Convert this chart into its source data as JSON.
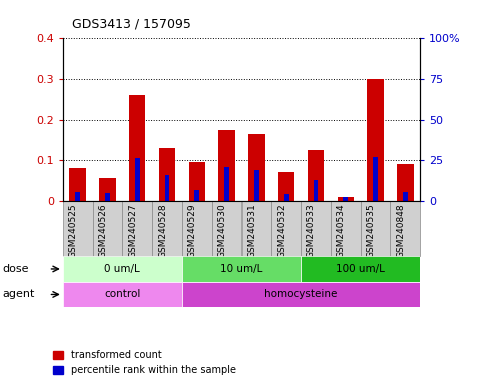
{
  "title": "GDS3413 / 157095",
  "samples": [
    "GSM240525",
    "GSM240526",
    "GSM240527",
    "GSM240528",
    "GSM240529",
    "GSM240530",
    "GSM240531",
    "GSM240532",
    "GSM240533",
    "GSM240534",
    "GSM240535",
    "GSM240848"
  ],
  "red_values": [
    0.08,
    0.055,
    0.26,
    0.13,
    0.095,
    0.175,
    0.165,
    0.07,
    0.125,
    0.008,
    0.3,
    0.09
  ],
  "blue_percentile": [
    5,
    4.5,
    26,
    16,
    6.5,
    21,
    19,
    4,
    13,
    2,
    27,
    5.5
  ],
  "ylim_left": [
    0,
    0.4
  ],
  "ylim_right": [
    0,
    100
  ],
  "yticks_left": [
    0.0,
    0.1,
    0.2,
    0.3,
    0.4
  ],
  "yticks_right": [
    0,
    25,
    50,
    75,
    100
  ],
  "ytick_labels_left": [
    "0",
    "0.1",
    "0.2",
    "0.3",
    "0.4"
  ],
  "ytick_labels_right": [
    "0",
    "25",
    "50",
    "75",
    "100%"
  ],
  "dose_groups": [
    {
      "label": "0 um/L",
      "start": 0,
      "end": 4
    },
    {
      "label": "10 um/L",
      "start": 4,
      "end": 8
    },
    {
      "label": "100 um/L",
      "start": 8,
      "end": 12
    }
  ],
  "dose_colors": [
    "#ccffcc",
    "#66dd66",
    "#22bb22"
  ],
  "agent_groups": [
    {
      "label": "control",
      "start": 0,
      "end": 4
    },
    {
      "label": "homocysteine",
      "start": 4,
      "end": 12
    }
  ],
  "agent_colors": [
    "#ee88ee",
    "#cc44cc"
  ],
  "dose_label": "dose",
  "agent_label": "agent",
  "legend_red": "transformed count",
  "legend_blue": "percentile rank within the sample",
  "red_color": "#cc0000",
  "blue_color": "#0000cc",
  "tick_label_color_left": "#cc0000",
  "tick_label_color_right": "#0000cc",
  "sample_box_color": "#d0d0d0",
  "sample_box_edge": "#888888"
}
